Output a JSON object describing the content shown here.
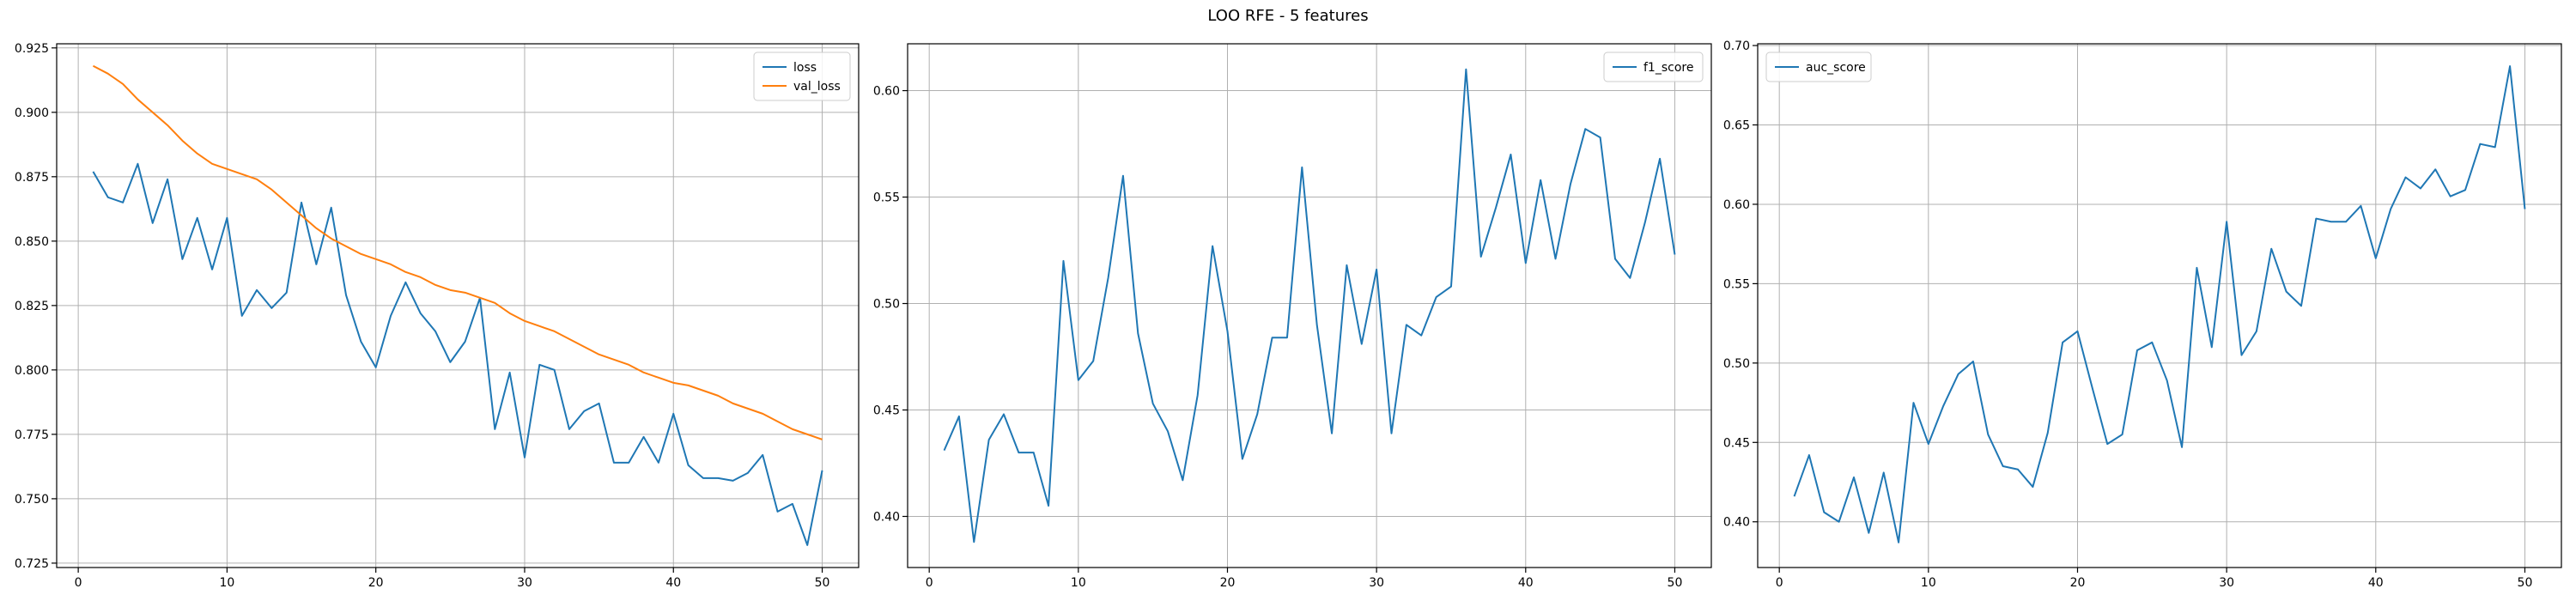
{
  "figure": {
    "title": "LOO RFE - 5 features"
  },
  "chart_data": [
    {
      "type": "line",
      "x": [
        1,
        2,
        3,
        4,
        5,
        6,
        7,
        8,
        9,
        10,
        11,
        12,
        13,
        14,
        15,
        16,
        17,
        18,
        19,
        20,
        21,
        22,
        23,
        24,
        25,
        26,
        27,
        28,
        29,
        30,
        31,
        32,
        33,
        34,
        35,
        36,
        37,
        38,
        39,
        40,
        41,
        42,
        43,
        44,
        45,
        46,
        47,
        48,
        49,
        50
      ],
      "xlim": [
        -1.45,
        52.45
      ],
      "ylim": [
        0.7233,
        0.9266
      ],
      "xticks": [
        0,
        10,
        20,
        30,
        40,
        50
      ],
      "xtick_labels": [
        "0",
        "10",
        "20",
        "30",
        "40",
        "50"
      ],
      "yticks": [
        0.725,
        0.75,
        0.775,
        0.8,
        0.825,
        0.85,
        0.875,
        0.9,
        0.925
      ],
      "ytick_labels": [
        "0.725",
        "0.750",
        "0.775",
        "0.800",
        "0.825",
        "0.850",
        "0.875",
        "0.900",
        "0.925"
      ],
      "grid": true,
      "legend_position": "upper-right",
      "series": [
        {
          "name": "loss",
          "color": "#1f77b4",
          "values": [
            0.877,
            0.867,
            0.865,
            0.88,
            0.857,
            0.874,
            0.843,
            0.859,
            0.839,
            0.859,
            0.821,
            0.831,
            0.824,
            0.83,
            0.865,
            0.841,
            0.863,
            0.829,
            0.811,
            0.801,
            0.821,
            0.834,
            0.822,
            0.815,
            0.803,
            0.811,
            0.828,
            0.777,
            0.799,
            0.766,
            0.802,
            0.8,
            0.777,
            0.784,
            0.787,
            0.764,
            0.764,
            0.774,
            0.764,
            0.783,
            0.763,
            0.758,
            0.758,
            0.757,
            0.76,
            0.767,
            0.745,
            0.748,
            0.732,
            0.761
          ]
        },
        {
          "name": "val_loss",
          "color": "#ff7f0e",
          "values": [
            0.918,
            0.915,
            0.911,
            0.905,
            0.9,
            0.895,
            0.889,
            0.884,
            0.88,
            0.878,
            0.876,
            0.874,
            0.87,
            0.865,
            0.86,
            0.855,
            0.851,
            0.848,
            0.845,
            0.843,
            0.841,
            0.838,
            0.836,
            0.833,
            0.831,
            0.83,
            0.828,
            0.826,
            0.822,
            0.819,
            0.817,
            0.815,
            0.812,
            0.809,
            0.806,
            0.804,
            0.802,
            0.799,
            0.797,
            0.795,
            0.794,
            0.792,
            0.79,
            0.787,
            0.785,
            0.783,
            0.78,
            0.777,
            0.775,
            0.773
          ]
        }
      ]
    },
    {
      "type": "line",
      "x": [
        1,
        2,
        3,
        4,
        5,
        6,
        7,
        8,
        9,
        10,
        11,
        12,
        13,
        14,
        15,
        16,
        17,
        18,
        19,
        20,
        21,
        22,
        23,
        24,
        25,
        26,
        27,
        28,
        29,
        30,
        31,
        32,
        33,
        34,
        35,
        36,
        37,
        38,
        39,
        40,
        41,
        42,
        43,
        44,
        45,
        46,
        47,
        48,
        49,
        50
      ],
      "xlim": [
        -1.45,
        52.45
      ],
      "ylim": [
        0.376,
        0.622
      ],
      "xticks": [
        0,
        10,
        20,
        30,
        40,
        50
      ],
      "xtick_labels": [
        "0",
        "10",
        "20",
        "30",
        "40",
        "50"
      ],
      "yticks": [
        0.4,
        0.45,
        0.5,
        0.55,
        0.6
      ],
      "ytick_labels": [
        "0.40",
        "0.45",
        "0.50",
        "0.55",
        "0.60"
      ],
      "grid": true,
      "legend_position": "upper-right",
      "series": [
        {
          "name": "f1_score",
          "color": "#1f77b4",
          "values": [
            0.431,
            0.447,
            0.388,
            0.436,
            0.448,
            0.43,
            0.43,
            0.405,
            0.52,
            0.464,
            0.473,
            0.512,
            0.56,
            0.486,
            0.453,
            0.44,
            0.417,
            0.457,
            0.527,
            0.487,
            0.427,
            0.448,
            0.484,
            0.484,
            0.564,
            0.49,
            0.439,
            0.518,
            0.481,
            0.516,
            0.439,
            0.49,
            0.485,
            0.503,
            0.508,
            0.61,
            0.522,
            0.545,
            0.57,
            0.519,
            0.558,
            0.521,
            0.556,
            0.582,
            0.578,
            0.521,
            0.512,
            0.538,
            0.568,
            0.523
          ]
        }
      ]
    },
    {
      "type": "line",
      "x": [
        1,
        2,
        3,
        4,
        5,
        6,
        7,
        8,
        9,
        10,
        11,
        12,
        13,
        14,
        15,
        16,
        17,
        18,
        19,
        20,
        21,
        22,
        23,
        24,
        25,
        26,
        27,
        28,
        29,
        30,
        31,
        32,
        33,
        34,
        35,
        36,
        37,
        38,
        39,
        40,
        41,
        42,
        43,
        44,
        45,
        46,
        47,
        48,
        49,
        50
      ],
      "xlim": [
        -1.45,
        52.45
      ],
      "ylim": [
        0.3712,
        0.7011
      ],
      "xticks": [
        0,
        10,
        20,
        30,
        40,
        50
      ],
      "xtick_labels": [
        "0",
        "10",
        "20",
        "30",
        "40",
        "50"
      ],
      "yticks": [
        0.4,
        0.45,
        0.5,
        0.55,
        0.6,
        0.65,
        0.7
      ],
      "ytick_labels": [
        "0.40",
        "0.45",
        "0.50",
        "0.55",
        "0.60",
        "0.65",
        "0.70"
      ],
      "grid": true,
      "legend_position": "upper-left",
      "series": [
        {
          "name": "auc_score",
          "color": "#1f77b4",
          "values": [
            0.416,
            0.442,
            0.406,
            0.4,
            0.428,
            0.393,
            0.431,
            0.387,
            0.475,
            0.449,
            0.473,
            0.493,
            0.501,
            0.455,
            0.435,
            0.433,
            0.422,
            0.456,
            0.513,
            0.52,
            0.484,
            0.449,
            0.455,
            0.508,
            0.513,
            0.489,
            0.447,
            0.56,
            0.51,
            0.589,
            0.505,
            0.52,
            0.572,
            0.545,
            0.536,
            0.591,
            0.589,
            0.589,
            0.599,
            0.566,
            0.597,
            0.617,
            0.61,
            0.622,
            0.605,
            0.609,
            0.638,
            0.636,
            0.687,
            0.597
          ]
        }
      ]
    }
  ]
}
